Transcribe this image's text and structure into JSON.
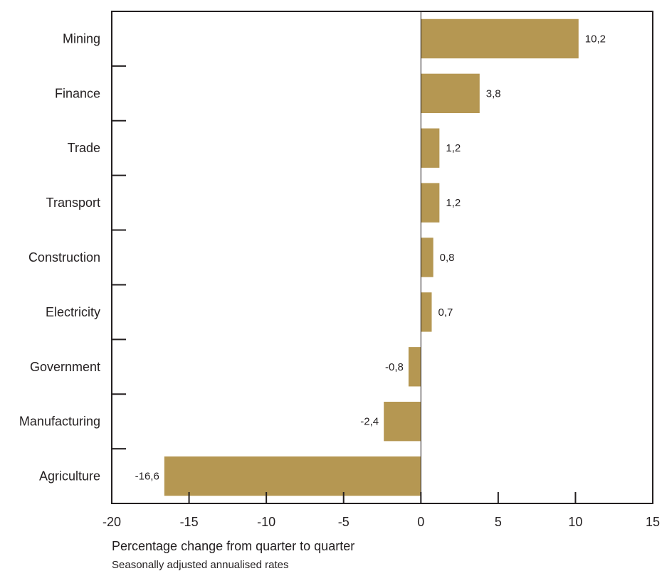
{
  "chart_data": {
    "type": "bar",
    "orientation": "horizontal",
    "categories": [
      "Mining",
      "Finance",
      "Trade",
      "Transport",
      "Construction",
      "Electricity",
      "Government",
      "Manufacturing",
      "Agriculture"
    ],
    "values": [
      10.2,
      3.8,
      1.2,
      1.2,
      0.8,
      0.7,
      -0.8,
      -2.4,
      -16.6
    ],
    "value_labels": [
      "10,2",
      "3,8",
      "1,2",
      "1,2",
      "0,8",
      "0,7",
      "-0,8",
      "-2,4",
      "-16,6"
    ],
    "xlim": [
      -20,
      15
    ],
    "x_ticks": [
      -20,
      -15,
      -10,
      -5,
      0,
      5,
      10,
      15
    ],
    "xlabel": "Percentage change from quarter to quarter",
    "note": "Seasonally adjusted annualised rates",
    "grid": false,
    "bar_color": "#b59752"
  }
}
